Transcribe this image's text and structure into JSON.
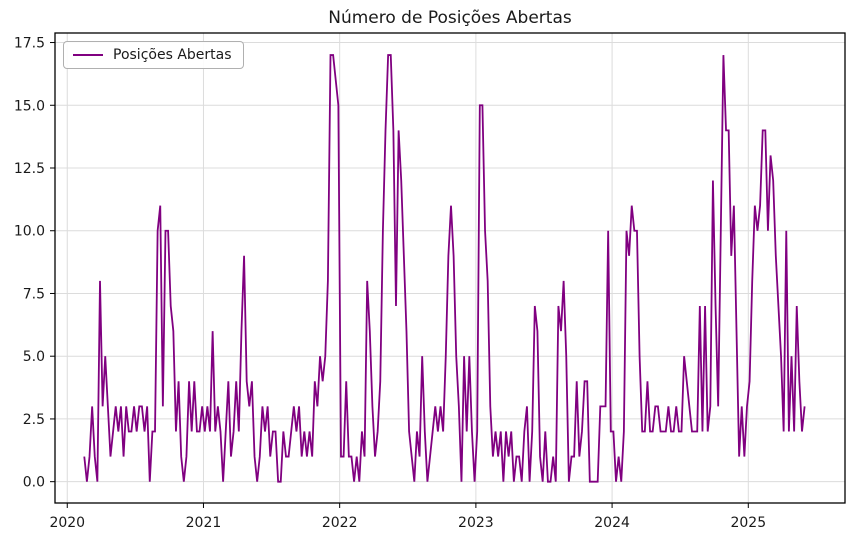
{
  "chart_data": {
    "type": "line",
    "title": "Número de Posições Abertas",
    "xlabel": "",
    "ylabel": "",
    "x_unit": "weekly time series",
    "x_start": 2020.125,
    "points_per_year": 52,
    "xlim": [
      2019.91,
      2025.71
    ],
    "ylim": [
      -0.85,
      17.88
    ],
    "xticks": [
      2020,
      2021,
      2022,
      2023,
      2024,
      2025
    ],
    "xtick_labels": [
      "2020",
      "2021",
      "2022",
      "2023",
      "2024",
      "2025"
    ],
    "yticks": [
      0,
      2.5,
      5,
      7.5,
      10,
      12.5,
      15,
      17.5
    ],
    "ytick_labels": [
      "0.0",
      "2.5",
      "5.0",
      "7.5",
      "10.0",
      "12.5",
      "15.0",
      "17.5"
    ],
    "grid": true,
    "grid_color": "#dcdcdc",
    "axis_color": "#000000",
    "background": "#ffffff",
    "legend_position": "upper left",
    "series": [
      {
        "name": "Posições Abertas",
        "color": "#800080",
        "values": [
          1,
          0,
          1,
          3,
          1,
          0,
          8,
          3,
          5,
          3,
          1,
          2,
          3,
          2,
          3,
          1,
          3,
          2,
          2,
          3,
          2,
          3,
          3,
          2,
          3,
          0,
          2,
          2,
          10,
          11,
          3,
          10,
          10,
          7,
          6,
          2,
          4,
          1,
          0,
          1,
          4,
          2,
          4,
          2,
          2,
          3,
          2,
          3,
          2,
          6,
          2,
          3,
          2,
          0,
          2,
          4,
          1,
          2,
          4,
          2,
          6,
          9,
          4,
          3,
          4,
          1,
          0,
          1,
          3,
          2,
          3,
          1,
          2,
          2,
          0,
          0,
          2,
          1,
          1,
          2,
          3,
          2,
          3,
          1,
          2,
          1,
          2,
          1,
          4,
          3,
          5,
          4,
          5,
          8,
          17,
          17,
          16,
          15,
          1,
          1,
          4,
          1,
          1,
          0,
          1,
          0,
          2,
          1,
          8,
          6,
          3,
          1,
          2,
          4,
          10,
          14,
          17,
          17,
          14,
          7,
          14,
          12,
          9,
          6,
          2,
          1,
          0,
          2,
          1,
          5,
          2,
          0,
          1,
          2,
          3,
          2,
          3,
          2,
          5,
          9,
          11,
          9,
          5,
          3,
          0,
          5,
          2,
          5,
          2,
          0,
          2,
          15,
          15,
          10,
          8,
          3,
          1,
          2,
          1,
          2,
          0,
          2,
          1,
          2,
          0,
          1,
          1,
          0,
          2,
          3,
          0,
          2,
          7,
          6,
          1,
          0,
          2,
          0,
          0,
          1,
          0,
          7,
          6,
          8,
          5,
          0,
          1,
          1,
          4,
          1,
          2,
          4,
          4,
          0,
          0,
          0,
          0,
          3,
          3,
          3,
          10,
          2,
          2,
          0,
          1,
          0,
          2,
          10,
          9,
          11,
          10,
          10,
          5,
          2,
          2,
          4,
          2,
          2,
          3,
          3,
          2,
          2,
          2,
          3,
          2,
          2,
          3,
          2,
          2,
          5,
          4,
          3,
          2,
          2,
          2,
          7,
          2,
          7,
          2,
          3,
          12,
          7,
          3,
          10,
          17,
          14,
          14,
          9,
          11,
          6,
          1,
          3,
          1,
          3,
          4,
          8,
          11,
          10,
          11,
          14,
          14,
          10,
          13,
          12,
          9,
          7,
          5,
          2,
          10,
          2,
          5,
          2,
          7,
          4,
          2,
          3
        ]
      }
    ]
  }
}
